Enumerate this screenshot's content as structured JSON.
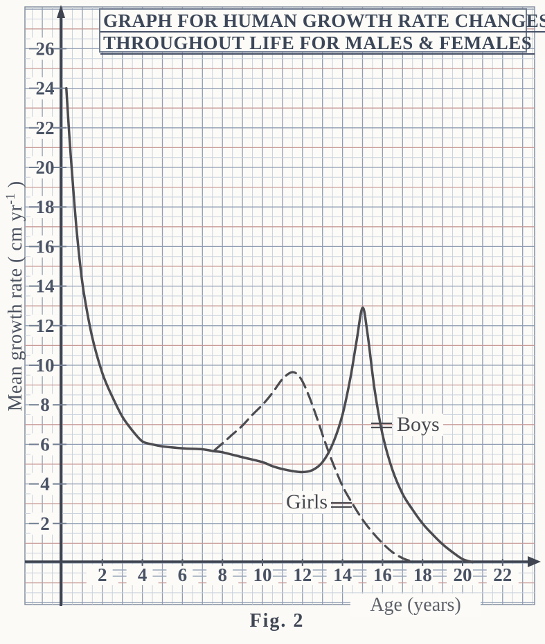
{
  "title": {
    "line1": "GRAPH FOR HUMAN GROWTH RATE CHANGES",
    "line2": "THROUGHOUT LIFE FOR MALES & FEMALES"
  },
  "caption": "Fig. 2",
  "axes": {
    "x_label": "Age (years)",
    "y_label_pre": "Mean growth rate ( cm yr",
    "y_label_sup": "-1",
    "y_label_post": " )"
  },
  "legend": {
    "boys": "Boys",
    "girls": "Girls"
  },
  "colors": {
    "curve": "#4b4b50",
    "grid_minor": "#c9d1dd",
    "grid_unit": "#8f9cb3",
    "grid_red": "#c89b98",
    "axis": "#3f4450",
    "tick_text": "#4a5365",
    "paper": "#fcfbf7",
    "border": "#848ea0"
  },
  "chart_data": {
    "type": "line",
    "title": "Graph for human growth rate changes throughout life for males & females",
    "xlabel": "Age (years)",
    "ylabel": "Mean growth rate (cm yr^-1)",
    "xlim": [
      0,
      23
    ],
    "ylim": [
      0,
      27
    ],
    "grid": true,
    "legend_position": "inside-right",
    "x_ticks": [
      2,
      4,
      6,
      8,
      10,
      12,
      14,
      16,
      18,
      20,
      22
    ],
    "y_ticks": [
      2,
      4,
      6,
      8,
      10,
      12,
      14,
      16,
      18,
      20,
      22,
      24,
      26
    ],
    "series": [
      {
        "name": "Boys",
        "style": "solid",
        "points": [
          [
            0.2,
            24
          ],
          [
            0.35,
            21.6
          ],
          [
            0.5,
            19.5
          ],
          [
            0.7,
            17.0
          ],
          [
            0.9,
            15.0
          ],
          [
            1.1,
            13.5
          ],
          [
            1.5,
            11.4
          ],
          [
            2,
            9.6
          ],
          [
            2.5,
            8.4
          ],
          [
            3,
            7.4
          ],
          [
            3.5,
            6.7
          ],
          [
            4,
            6.15
          ],
          [
            4.5,
            6.0
          ],
          [
            5,
            5.9
          ],
          [
            6,
            5.8
          ],
          [
            7,
            5.75
          ],
          [
            7.6,
            5.65
          ],
          [
            8,
            5.6
          ],
          [
            9,
            5.35
          ],
          [
            10,
            5.1
          ],
          [
            10.5,
            4.9
          ],
          [
            11,
            4.75
          ],
          [
            11.5,
            4.65
          ],
          [
            12,
            4.6
          ],
          [
            12.5,
            4.7
          ],
          [
            13,
            5.1
          ],
          [
            13.5,
            6.0
          ],
          [
            14,
            7.5
          ],
          [
            14.4,
            9.4
          ],
          [
            14.7,
            11.2
          ],
          [
            15,
            12.9
          ],
          [
            15.25,
            11.6
          ],
          [
            15.6,
            8.8
          ],
          [
            16,
            6.5
          ],
          [
            16.5,
            4.7
          ],
          [
            17,
            3.5
          ],
          [
            17.5,
            2.7
          ],
          [
            18,
            2.0
          ],
          [
            18.5,
            1.45
          ],
          [
            19,
            0.95
          ],
          [
            19.5,
            0.55
          ],
          [
            20,
            0.2
          ],
          [
            20.5,
            0.05
          ]
        ]
      },
      {
        "name": "Girls",
        "style": "dashed",
        "points": [
          [
            7.6,
            5.7
          ],
          [
            8,
            6.05
          ],
          [
            8.5,
            6.5
          ],
          [
            9,
            6.95
          ],
          [
            9.5,
            7.5
          ],
          [
            10,
            8.0
          ],
          [
            10.5,
            8.6
          ],
          [
            11,
            9.3
          ],
          [
            11.5,
            9.65
          ],
          [
            11.9,
            9.35
          ],
          [
            12.3,
            8.5
          ],
          [
            12.7,
            7.4
          ],
          [
            13.1,
            6.2
          ],
          [
            13.5,
            5.1
          ],
          [
            14,
            3.9
          ],
          [
            14.5,
            3.0
          ],
          [
            15,
            2.2
          ],
          [
            15.5,
            1.55
          ],
          [
            16,
            1.0
          ],
          [
            16.5,
            0.55
          ],
          [
            17,
            0.25
          ],
          [
            17.4,
            0.1
          ]
        ]
      }
    ],
    "annotations": [
      {
        "text": "Boys",
        "points_to": "Boys curve at ~age 15.6"
      },
      {
        "text": "Girls",
        "points_to": "Girls curve at ~age 14.3"
      }
    ]
  }
}
